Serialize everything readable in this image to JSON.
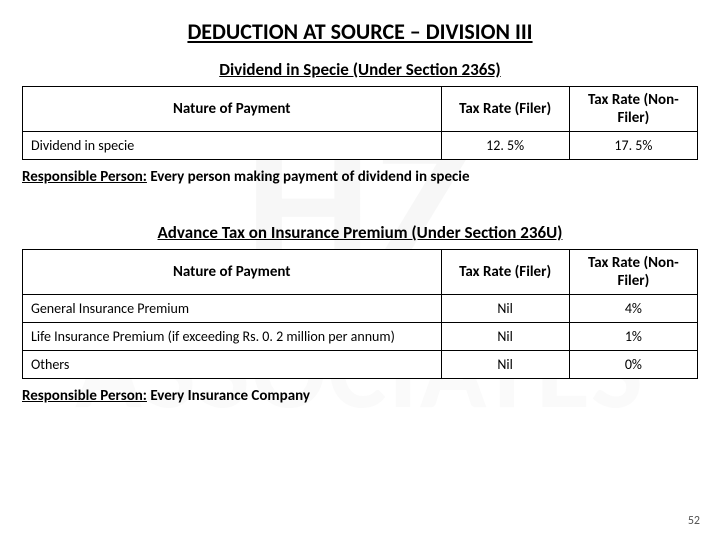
{
  "watermark": {
    "top": "HZ",
    "bottom": "ASSOCIATES"
  },
  "page_title": "DEDUCTION AT SOURCE – DIVISION III",
  "section1": {
    "heading": "Dividend in Specie (Under Section 236S)",
    "columns": [
      "Nature of Payment",
      "Tax Rate (Filer)",
      "Tax Rate (Non-Filer)"
    ],
    "rows": [
      {
        "nature": "Dividend in specie",
        "filer": "12. 5%",
        "nonfiler": "17. 5%"
      }
    ],
    "responsible_label": "Responsible Person:",
    "responsible_text": " Every person making payment of dividend in specie"
  },
  "section2": {
    "heading": "Advance Tax on Insurance Premium (Under Section 236U)",
    "columns": [
      "Nature of Payment",
      "Tax Rate (Filer)",
      "Tax Rate (Non-Filer)"
    ],
    "rows": [
      {
        "nature": "General Insurance Premium",
        "filer": "Nil",
        "nonfiler": "4%"
      },
      {
        "nature": "Life Insurance Premium (if exceeding Rs. 0. 2 million per annum)",
        "filer": "Nil",
        "nonfiler": "1%"
      },
      {
        "nature": "Others",
        "filer": "Nil",
        "nonfiler": "0%"
      }
    ],
    "responsible_label": "Responsible Person:",
    "responsible_text": " Every Insurance Company"
  },
  "page_number": "52"
}
